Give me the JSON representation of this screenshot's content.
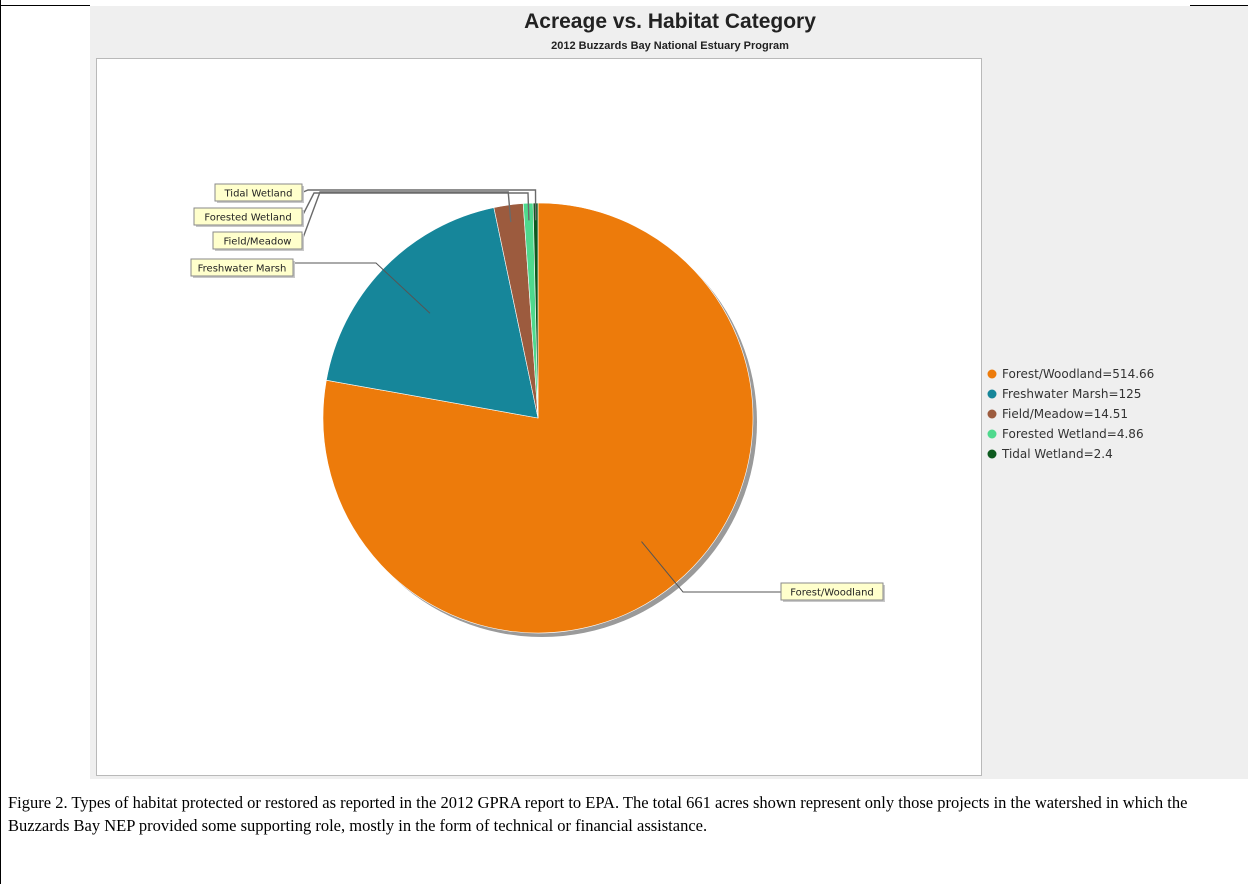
{
  "chart_data": {
    "type": "pie",
    "title": "Acreage vs. Habitat Category",
    "subtitle": "2012 Buzzards Bay National Estuary Program",
    "categories": [
      "Forest/Woodland",
      "Freshwater Marsh",
      "Field/Meadow",
      "Forested Wetland",
      "Tidal Wetland"
    ],
    "values": [
      514.66,
      125,
      14.51,
      4.86,
      2.4
    ],
    "colors": [
      "#ed7b0b",
      "#16869a",
      "#9c5b3e",
      "#4fd98d",
      "#0d5a1e"
    ],
    "legend": {
      "placement": "right",
      "entries": [
        "Forest/Woodland=514.66",
        "Freshwater Marsh=125",
        "Field/Meadow=14.51",
        "Forested Wetland=4.86",
        "Tidal Wetland=2.4"
      ]
    }
  },
  "caption": "Figure 2.  Types of habitat protected or restored as reported in the 2012 GPRA report to EPA.  The total 661 acres shown represent only those projects in the watershed in which the Buzzards Bay NEP provided some supporting role, mostly in the form of technical or financial assistance."
}
